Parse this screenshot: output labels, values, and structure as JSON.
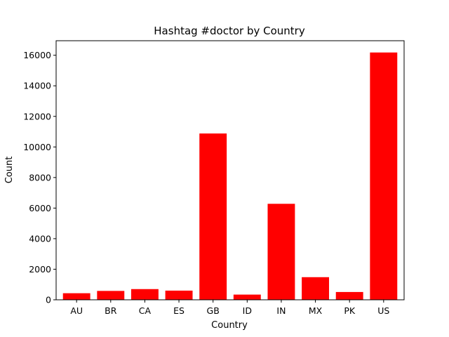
{
  "chart_data": {
    "type": "bar",
    "title": "Hashtag #doctor by Country",
    "xlabel": "Country",
    "ylabel": "Count",
    "categories": [
      "AU",
      "BR",
      "CA",
      "ES",
      "GB",
      "ID",
      "IN",
      "MX",
      "PK",
      "US"
    ],
    "values": [
      430,
      580,
      700,
      600,
      10880,
      340,
      6280,
      1480,
      510,
      16180
    ],
    "ylim": [
      0,
      16950
    ],
    "yticks": [
      0,
      2000,
      4000,
      6000,
      8000,
      10000,
      12000,
      14000,
      16000
    ],
    "yticks_labels": [
      "0",
      "2000",
      "4000",
      "6000",
      "8000",
      "10000",
      "12000",
      "14000",
      "16000"
    ],
    "bar_color": "#ff0000",
    "grid": false,
    "legend": "none"
  }
}
